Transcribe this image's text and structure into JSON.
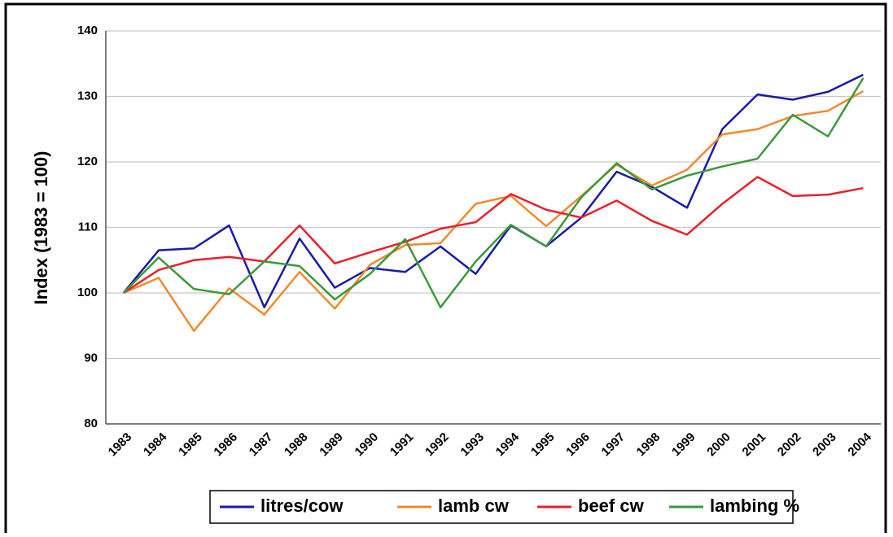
{
  "chart_data": {
    "type": "line",
    "y_label": "Index (1983 = 100)",
    "categories": [
      "1983",
      "1984",
      "1985",
      "1986",
      "1987",
      "1988",
      "1989",
      "1990",
      "1991",
      "1992",
      "1993",
      "1994",
      "1995",
      "1996",
      "1997",
      "1998",
      "1999",
      "2000",
      "2001",
      "2002",
      "2003",
      "2004"
    ],
    "series": [
      {
        "name": "litres/cow",
        "color": "#1a1aa6",
        "values": [
          100,
          106.5,
          106.8,
          110.3,
          97.8,
          108.3,
          100.8,
          103.8,
          103.2,
          107.1,
          102.9,
          110.3,
          107.1,
          111.5,
          118.5,
          116.2,
          113.0,
          125.0,
          130.3,
          129.5,
          130.7,
          133.3
        ]
      },
      {
        "name": "lamb cw",
        "color": "#f08a2c",
        "values": [
          100,
          102.3,
          94.2,
          100.7,
          96.7,
          103.2,
          97.6,
          104.3,
          107.3,
          107.6,
          113.6,
          114.8,
          110.2,
          114.8,
          119.6,
          116.4,
          118.8,
          124.2,
          125.0,
          127.0,
          127.8,
          130.8
        ]
      },
      {
        "name": "beef cw",
        "color": "#e8202a",
        "values": [
          100,
          103.5,
          105.0,
          105.5,
          104.8,
          110.3,
          104.5,
          106.2,
          107.8,
          109.8,
          110.8,
          115.1,
          112.7,
          111.5,
          114.1,
          111.0,
          108.9,
          113.6,
          117.7,
          114.8,
          115.0,
          116.0
        ]
      },
      {
        "name": "lambing %",
        "color": "#3a9a3a",
        "values": [
          100,
          105.4,
          100.6,
          99.8,
          104.8,
          104.1,
          99.0,
          102.9,
          108.2,
          97.8,
          104.8,
          110.4,
          107.1,
          114.6,
          119.8,
          115.8,
          117.9,
          119.3,
          120.5,
          127.2,
          123.9,
          132.8
        ]
      }
    ],
    "ylim": [
      80,
      140
    ],
    "yticks": [
      80,
      90,
      100,
      110,
      120,
      130,
      140
    ],
    "grid": true,
    "legend": "bottom"
  }
}
